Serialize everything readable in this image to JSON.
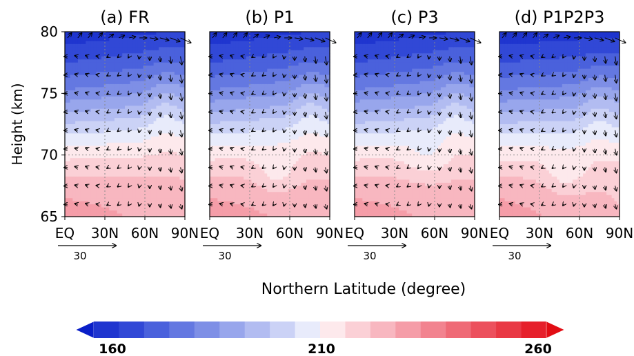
{
  "figure": {
    "ylabel": "Height (km)",
    "xlabel": "Northern Latitude (degree)",
    "colorbar": {
      "min": 160,
      "mid": 210,
      "max": 260,
      "labels": [
        "160",
        "210",
        "260"
      ],
      "colors": [
        "#0a1fc8",
        "#1f35cf",
        "#3148d6",
        "#4a61dc",
        "#6478e1",
        "#7e8fe6",
        "#98a6ec",
        "#b2bcf1",
        "#cbd2f6",
        "#e8ebfb",
        "#fde9ec",
        "#fbd0d6",
        "#f8b7c0",
        "#f59da8",
        "#f2838f",
        "#ef6a76",
        "#ec505d",
        "#e93844",
        "#e6202b",
        "#e20d14"
      ]
    },
    "reference_vector_label": "30"
  },
  "chart_data": [
    {
      "type": "heatmap",
      "title": "(a) FR",
      "xlabel": "",
      "ylabel": "Height (km)",
      "x_ticks": [
        "EQ",
        "30N",
        "60N",
        "90N"
      ],
      "y_ticks": [
        "65",
        "70",
        "75",
        "80"
      ],
      "x_range": [
        0,
        90
      ],
      "y_range": [
        65,
        80
      ],
      "z_range": [
        160,
        260
      ],
      "variant": 0
    },
    {
      "type": "heatmap",
      "title": "(b) P1",
      "xlabel": "",
      "ylabel": "",
      "x_ticks": [
        "EQ",
        "30N",
        "60N",
        "90N"
      ],
      "y_ticks": [],
      "x_range": [
        0,
        90
      ],
      "y_range": [
        65,
        80
      ],
      "z_range": [
        160,
        260
      ],
      "variant": 1
    },
    {
      "type": "heatmap",
      "title": "(c) P3",
      "xlabel": "",
      "ylabel": "",
      "x_ticks": [
        "EQ",
        "30N",
        "60N",
        "90N"
      ],
      "y_ticks": [],
      "x_range": [
        0,
        90
      ],
      "y_range": [
        65,
        80
      ],
      "z_range": [
        160,
        260
      ],
      "variant": 2
    },
    {
      "type": "heatmap",
      "title": "(d) P1P2P3",
      "xlabel": "",
      "ylabel": "",
      "x_ticks": [
        "EQ",
        "30N",
        "60N",
        "90N"
      ],
      "y_ticks": [],
      "x_range": [
        0,
        90
      ],
      "y_range": [
        65,
        80
      ],
      "z_range": [
        160,
        260
      ],
      "variant": 3
    }
  ]
}
